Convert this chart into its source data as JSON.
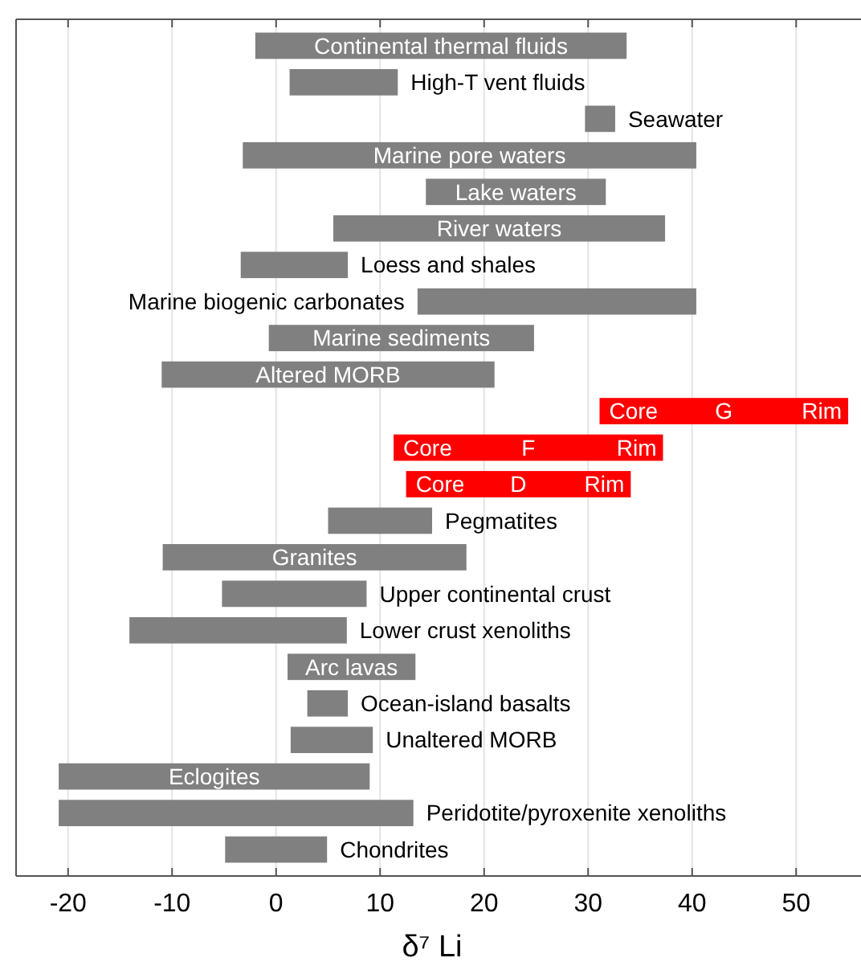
{
  "chart_data": {
    "type": "bar",
    "orientation": "horizontal",
    "xlabel": "δ⁷ Li",
    "categories": [
      "Continental thermal fluids",
      "High-T vent fluids",
      "Seawater",
      "Marine pore waters",
      "Lake waters",
      "River waters",
      "Loess and shales",
      "Marine biogenic carbonates",
      "Marine sediments",
      "Altered MORB",
      "G",
      "F",
      "D",
      "Pegmatites",
      "Granites",
      "Upper continental crust",
      "Lower crust xenoliths",
      "Arc lavas",
      "Ocean-island basalts",
      "Unaltered MORB",
      "Eclogites",
      "Peridotite/pyroxenite xenoliths",
      "Chondrites"
    ],
    "base": [
      -2,
      1.3,
      29.7,
      -3.2,
      14.4,
      5.5,
      -3.4,
      13.6,
      -0.7,
      -11,
      31.1,
      11.3,
      12.5,
      5,
      -10.9,
      -5.2,
      -14.1,
      1.1,
      3,
      1.4,
      -20.9,
      -20.9,
      -4.9
    ],
    "values": [
      35.7,
      10.4,
      2.9,
      43.6,
      17.3,
      31.9,
      10.3,
      26.8,
      25.5,
      32,
      23.9,
      25.9,
      21.6,
      10,
      29.2,
      13.9,
      20.9,
      12.3,
      3.9,
      7.9,
      29.9,
      34.1,
      9.8
    ],
    "colors": [
      "#808080",
      "#808080",
      "#808080",
      "#808080",
      "#808080",
      "#808080",
      "#808080",
      "#808080",
      "#808080",
      "#808080",
      "#ff0000",
      "#ff0000",
      "#ff0000",
      "#808080",
      "#808080",
      "#808080",
      "#808080",
      "#808080",
      "#808080",
      "#808080",
      "#808080",
      "#808080",
      "#808080"
    ],
    "annotations": [
      {
        "text": "Core",
        "x": 31.1,
        "y": "G"
      },
      {
        "text": "Rim",
        "x": 55,
        "y": "G"
      },
      {
        "text": "Core",
        "x": 11.3,
        "y": "F"
      },
      {
        "text": "Rim",
        "x": 37.2,
        "y": "F"
      },
      {
        "text": "Core",
        "x": 12.5,
        "y": "D"
      },
      {
        "text": "Rim",
        "x": 34.1,
        "y": "D"
      }
    ],
    "xlim": [
      -25,
      55
    ],
    "xticks": [
      -20,
      -10,
      0,
      10,
      20,
      30,
      40,
      50
    ],
    "grid": "x"
  }
}
